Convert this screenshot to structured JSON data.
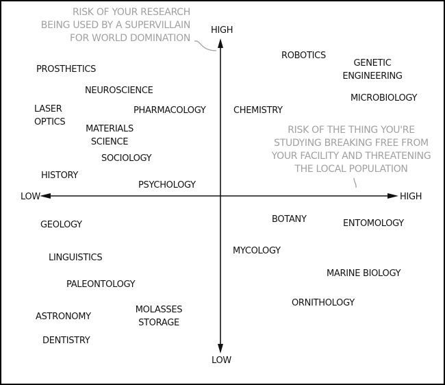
{
  "axes": {
    "y_high": "HIGH",
    "y_low": "LOW",
    "x_low": "LOW",
    "x_high": "HIGH",
    "y_annotation": "RISK OF YOUR RESEARCH\nBEING USED BY A SUPERVILLAIN\nFOR WORLD DOMINATION",
    "x_annotation": "RISK OF THE THING YOU'RE\nSTUDYING BREAKING FREE FROM\nYOUR FACILITY AND THREATENING\nTHE LOCAL POPULATION"
  },
  "fields": [
    "PROSTHETICS",
    "NEUROSCIENCE",
    "LASER\nOPTICS",
    "PHARMACOLOGY",
    "MATERIALS\nSCIENCE",
    "SOCIOLOGY",
    "HISTORY",
    "PSYCHOLOGY",
    "ROBOTICS",
    "GENETIC\nENGINEERING",
    "MICROBIOLOGY",
    "CHEMISTRY",
    "BOTANY",
    "ENTOMOLOGY",
    "GEOLOGY",
    "MYCOLOGY",
    "LINGUISTICS",
    "MARINE BIOLOGY",
    "PALEONTOLOGY",
    "ORNITHOLOGY",
    "MOLASSES\nSTORAGE",
    "ASTRONOMY",
    "DENTISTRY"
  ],
  "colors": {
    "ink": "#111111",
    "annotation": "#a0a0a0"
  }
}
